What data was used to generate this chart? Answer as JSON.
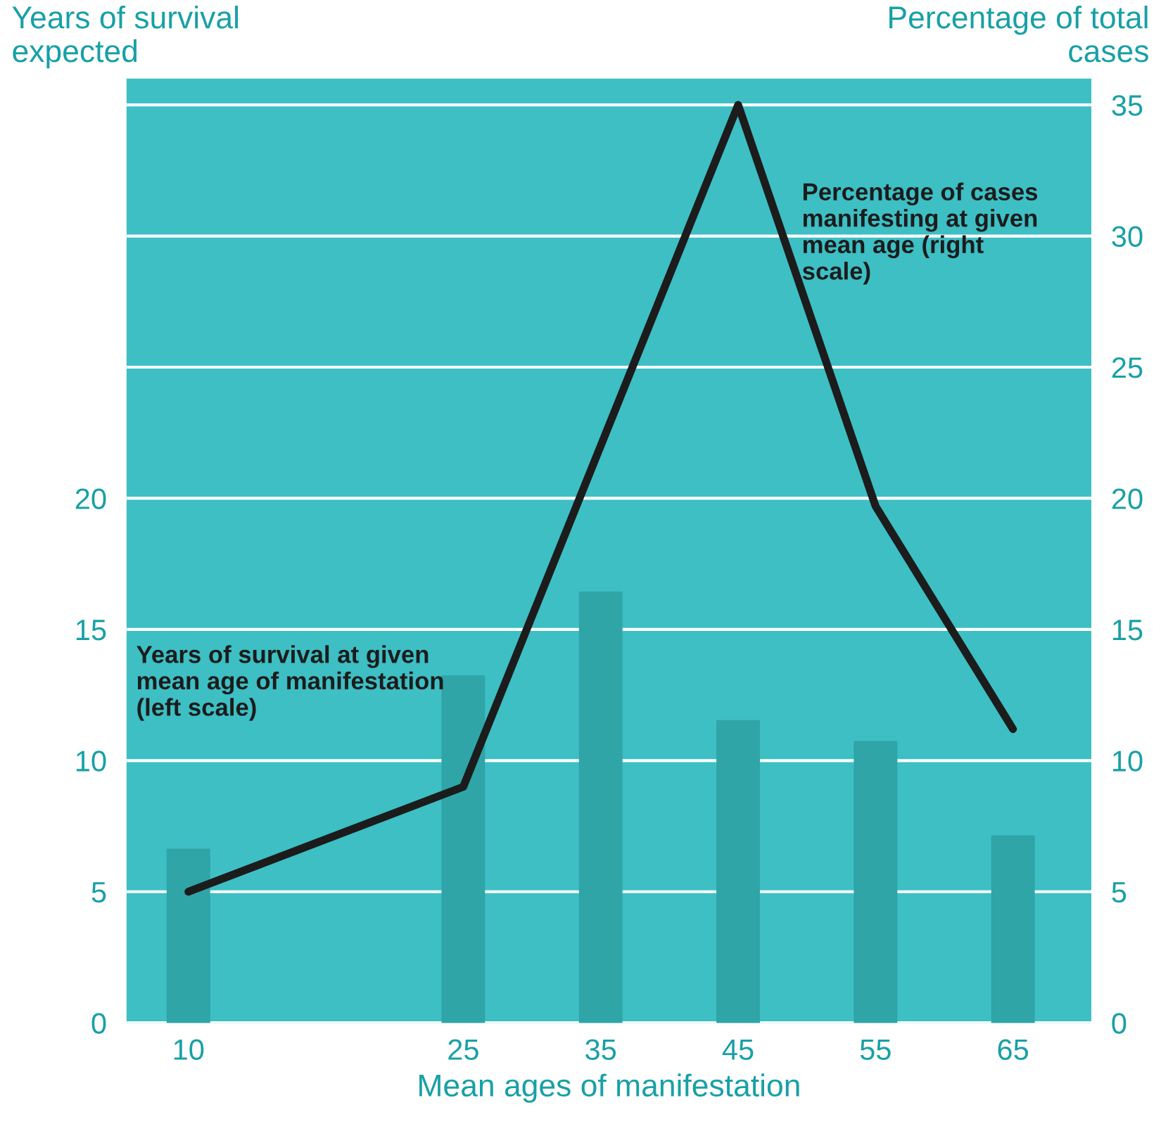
{
  "chart_data": {
    "type": "bar",
    "xlabel": "Mean ages of manifestation",
    "ylabel": "Years of survival expected",
    "y2label": "Percentage of total cases",
    "categories": [
      "10",
      null,
      "25",
      "35",
      "45",
      "55",
      "65"
    ],
    "series": [
      {
        "name": "Years of survival at given mean age of manifestation (left scale)",
        "color": "#2fa5a8",
        "values": [
          6.6,
          null,
          13.2,
          16.4,
          11.5,
          10.7,
          7.1
        ]
      },
      {
        "name": "Percentage of cases manifesting at given mean age (right scale)",
        "type": "line",
        "axis": "y2",
        "color": "#1c1c1c",
        "values": [
          5.0,
          null,
          9.0,
          null,
          35,
          19.7,
          11.2
        ]
      }
    ],
    "ylim": [
      0,
      36
    ],
    "yticks": [
      0,
      5,
      10,
      15,
      20
    ],
    "y2lim": [
      0,
      36
    ],
    "y2ticks": [
      0,
      5,
      10,
      15,
      20,
      25,
      30,
      35
    ],
    "grid": "y2",
    "legend": false
  }
}
